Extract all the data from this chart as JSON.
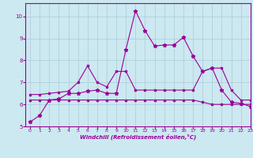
{
  "background_color": "#cce8f0",
  "grid_color": "#aaccd8",
  "line_color": "#990099",
  "xlim": [
    -0.5,
    23
  ],
  "ylim": [
    5.0,
    10.6
  ],
  "yticks": [
    5,
    6,
    7,
    8,
    9,
    10
  ],
  "xticks": [
    0,
    1,
    2,
    3,
    4,
    5,
    6,
    7,
    8,
    9,
    10,
    11,
    12,
    13,
    14,
    15,
    16,
    17,
    18,
    19,
    20,
    21,
    22,
    23
  ],
  "xlabel": "Windchill (Refroidissement éolien,°C)",
  "series1_x": [
    0,
    1,
    2,
    3,
    4,
    5,
    6,
    7,
    8,
    9,
    10,
    11,
    12,
    13,
    14,
    15,
    16,
    17,
    18,
    19,
    20,
    21,
    22,
    23
  ],
  "series1_y": [
    5.2,
    5.5,
    6.2,
    6.25,
    6.5,
    6.5,
    6.6,
    6.65,
    6.5,
    6.5,
    8.5,
    10.25,
    9.35,
    8.65,
    8.7,
    8.7,
    9.05,
    8.2,
    7.5,
    7.65,
    6.65,
    6.1,
    6.05,
    5.9
  ],
  "series2_x": [
    0,
    1,
    2,
    3,
    4,
    5,
    6,
    7,
    8,
    9,
    10,
    11,
    12,
    13,
    14,
    15,
    16,
    17,
    18,
    19,
    20,
    21,
    22,
    23
  ],
  "series2_y": [
    6.45,
    6.45,
    6.5,
    6.55,
    6.6,
    7.0,
    7.75,
    7.0,
    6.8,
    7.5,
    7.5,
    6.65,
    6.65,
    6.65,
    6.65,
    6.65,
    6.65,
    6.65,
    7.5,
    7.65,
    7.65,
    6.65,
    6.2,
    6.2
  ],
  "series3_x": [
    0,
    1,
    2,
    3,
    4,
    5,
    6,
    7,
    8,
    9,
    10,
    11,
    12,
    13,
    14,
    15,
    16,
    17,
    18,
    19,
    20,
    21,
    22,
    23
  ],
  "series3_y": [
    6.2,
    6.2,
    6.2,
    6.2,
    6.2,
    6.2,
    6.2,
    6.2,
    6.2,
    6.2,
    6.2,
    6.2,
    6.2,
    6.2,
    6.2,
    6.2,
    6.2,
    6.2,
    6.1,
    6.0,
    6.0,
    6.0,
    6.0,
    6.0
  ]
}
